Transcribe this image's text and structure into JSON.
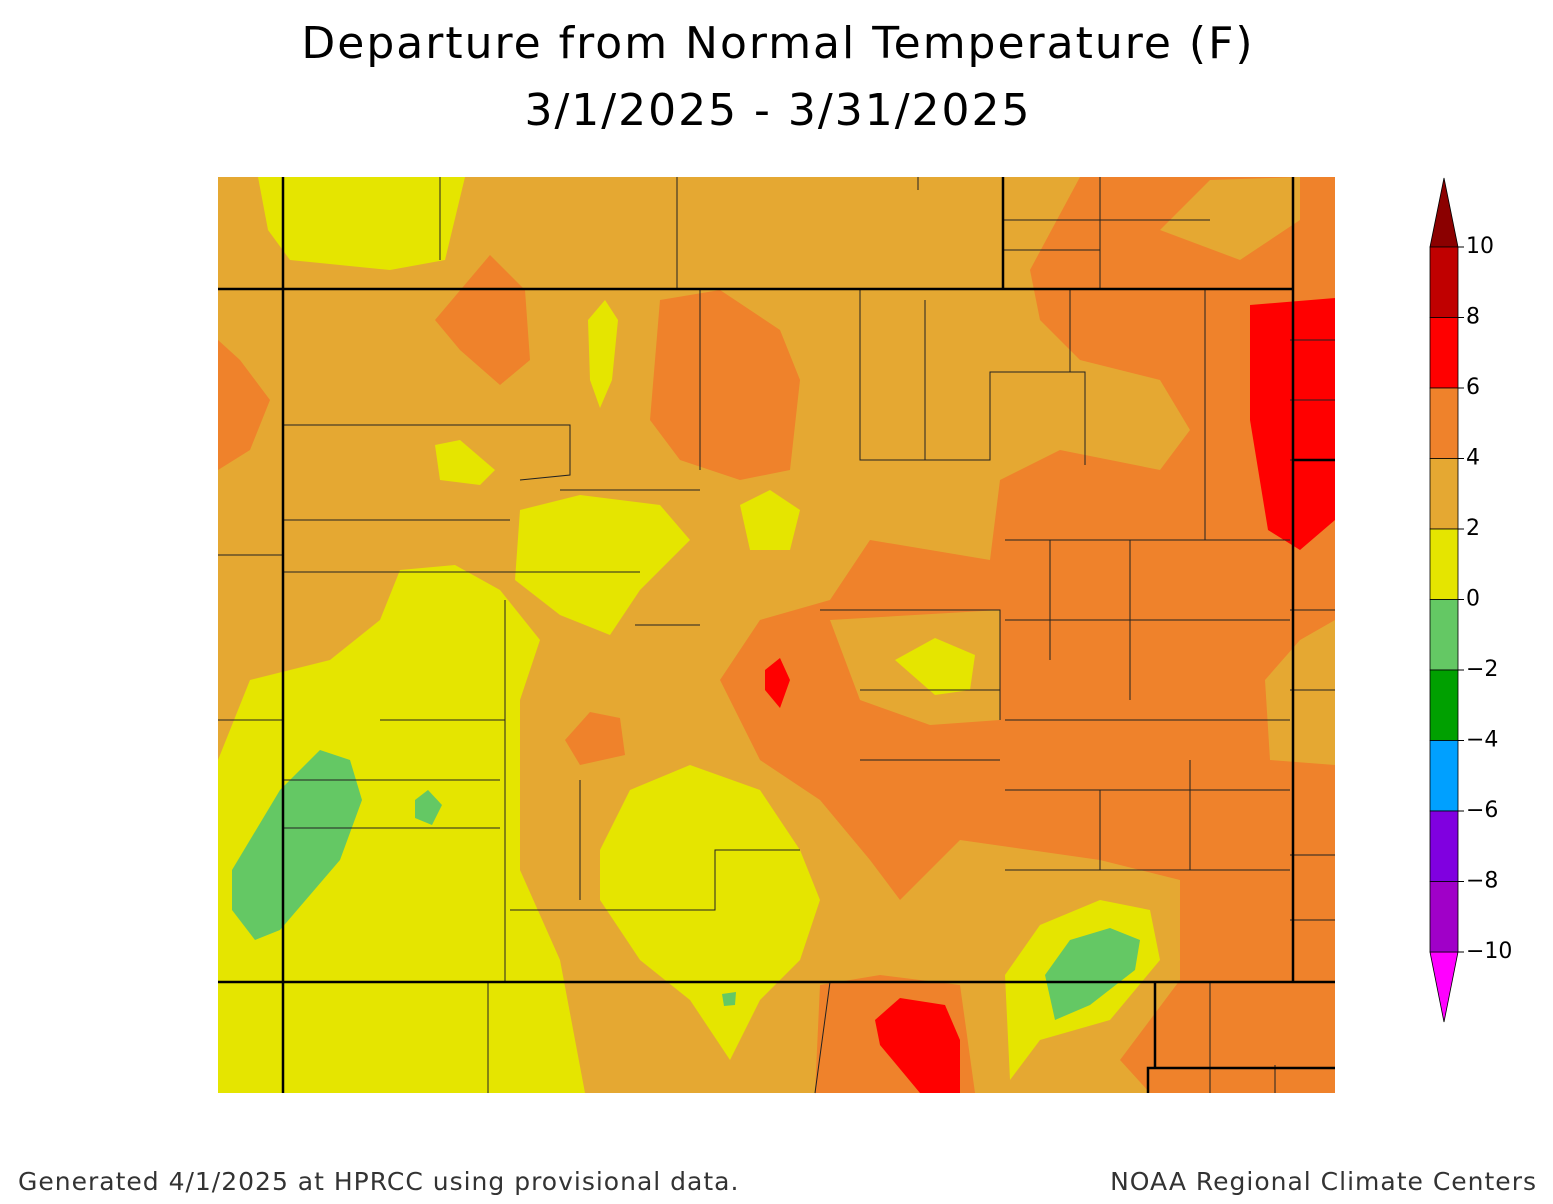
{
  "title": [
    "Departure from Normal Temperature (F)",
    "3/1/2025 - 3/31/2025"
  ],
  "colorbar": {
    "range": [
      -10,
      10
    ],
    "ticks": [
      10,
      8,
      6,
      4,
      2,
      0,
      {
        "value": -2,
        "label": "−2"
      },
      {
        "value": -4,
        "label": "−4"
      },
      {
        "value": -6,
        "label": "−6"
      },
      {
        "value": -8,
        "label": "−8"
      },
      {
        "value": -10,
        "label": "−10"
      }
    ],
    "bins": [
      {
        "from": 8,
        "to": 10,
        "color": "#c00000"
      },
      {
        "from": 6,
        "to": 8,
        "color": "#ff0000"
      },
      {
        "from": 4,
        "to": 6,
        "color": "#ef822b"
      },
      {
        "from": 2,
        "to": 4,
        "color": "#e5a832"
      },
      {
        "from": 0,
        "to": 2,
        "color": "#e5e500"
      },
      {
        "from": -2,
        "to": 0,
        "color": "#64c864"
      },
      {
        "from": -4,
        "to": -2,
        "color": "#00a000"
      },
      {
        "from": -6,
        "to": -4,
        "color": "#00a0ff"
      },
      {
        "from": -8,
        "to": -6,
        "color": "#8000e0"
      },
      {
        "from": -10,
        "to": -8,
        "color": "#a000c8"
      }
    ],
    "over_color": "#8b0000",
    "under_color": "#ff00ff"
  },
  "footer": {
    "left": "Generated 4/1/2025 at HPRCC using provisional data.",
    "right": "NOAA Regional Climate Centers"
  }
}
